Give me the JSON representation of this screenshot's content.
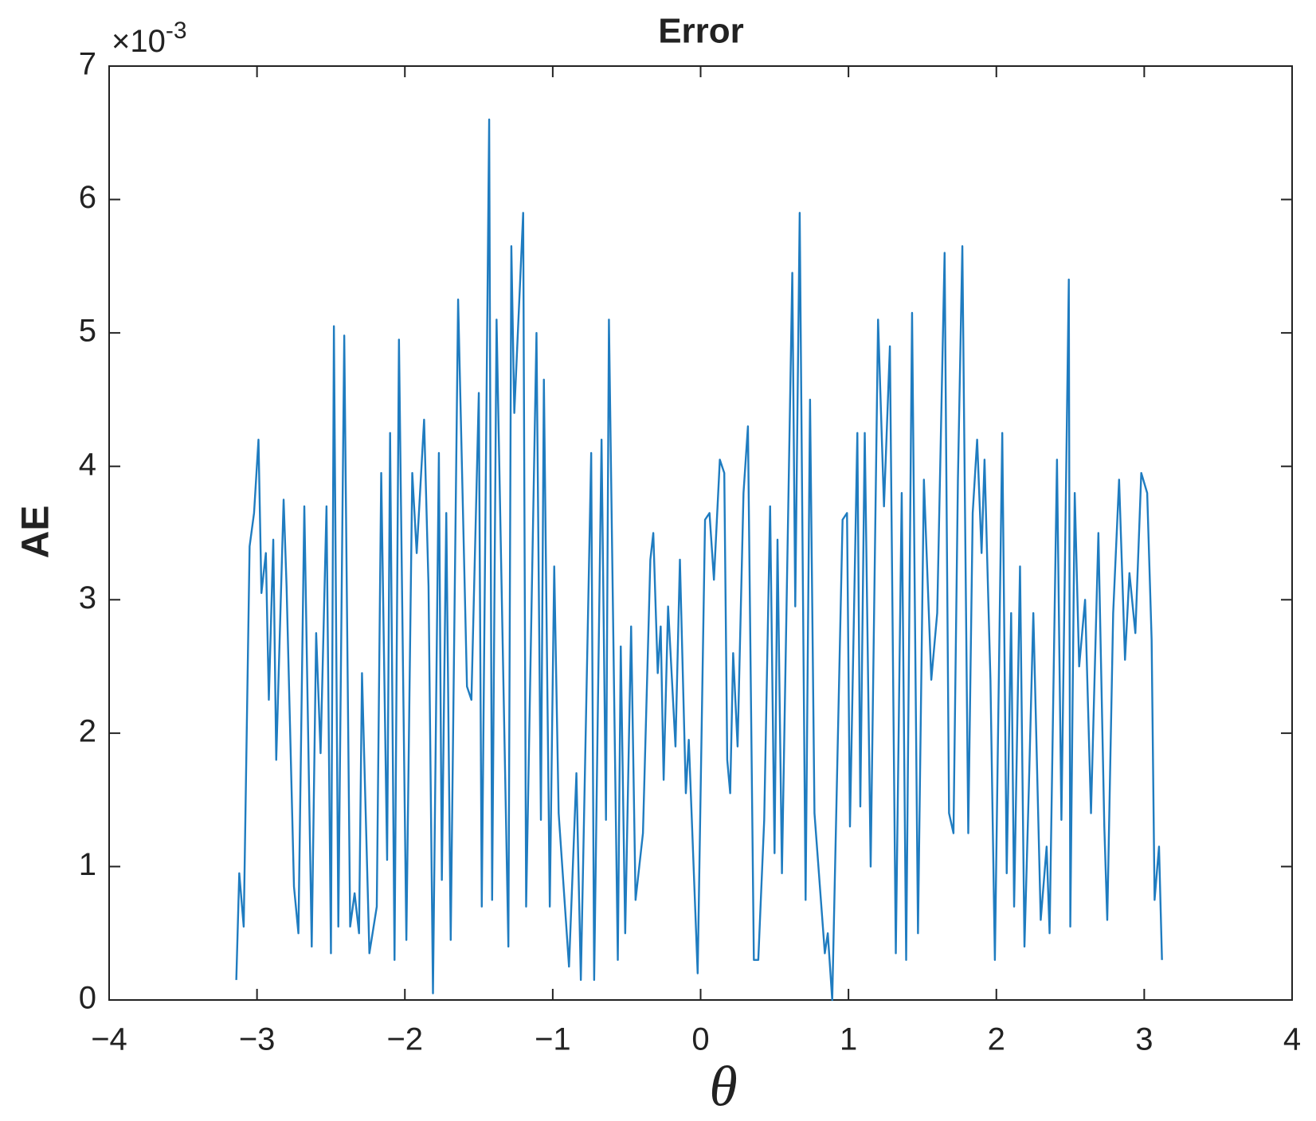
{
  "chart_data": {
    "type": "line",
    "title": "Error",
    "x_label": "θ",
    "y_label": "AE",
    "y_multiplier": {
      "base": "×10",
      "exponent": "-3"
    },
    "color": "#1f7cc0",
    "grid": false,
    "box": true,
    "xlim": [
      -4,
      4
    ],
    "ylim": [
      0,
      7
    ],
    "xticks": [
      {
        "value": -4,
        "label": "−4"
      },
      {
        "value": -3,
        "label": "−3"
      },
      {
        "value": -2,
        "label": "−2"
      },
      {
        "value": -1,
        "label": "−1"
      },
      0,
      1,
      2,
      3,
      4
    ],
    "yticks": [
      0,
      1,
      2,
      3,
      4,
      5,
      6,
      7
    ],
    "x": [
      -3.14,
      -3.12,
      -3.09,
      -3.05,
      -3.02,
      -2.99,
      -2.97,
      -2.94,
      -2.92,
      -2.89,
      -2.87,
      -2.82,
      -2.8,
      -2.75,
      -2.72,
      -2.68,
      -2.63,
      -2.6,
      -2.57,
      -2.53,
      -2.5,
      -2.48,
      -2.45,
      -2.41,
      -2.37,
      -2.34,
      -2.31,
      -2.29,
      -2.24,
      -2.19,
      -2.16,
      -2.12,
      -2.1,
      -2.07,
      -2.04,
      -1.99,
      -1.95,
      -1.92,
      -1.87,
      -1.84,
      -1.81,
      -1.77,
      -1.75,
      -1.72,
      -1.69,
      -1.64,
      -1.58,
      -1.55,
      -1.5,
      -1.48,
      -1.43,
      -1.41,
      -1.38,
      -1.3,
      -1.28,
      -1.26,
      -1.2,
      -1.18,
      -1.11,
      -1.08,
      -1.06,
      -1.02,
      -0.99,
      -0.96,
      -0.89,
      -0.84,
      -0.81,
      -0.74,
      -0.72,
      -0.67,
      -0.64,
      -0.62,
      -0.56,
      -0.54,
      -0.51,
      -0.47,
      -0.44,
      -0.39,
      -0.34,
      -0.32,
      -0.29,
      -0.27,
      -0.25,
      -0.22,
      -0.17,
      -0.14,
      -0.1,
      -0.08,
      -0.02,
      0.03,
      0.06,
      0.09,
      0.13,
      0.16,
      0.18,
      0.2,
      0.22,
      0.25,
      0.29,
      0.32,
      0.36,
      0.39,
      0.43,
      0.47,
      0.5,
      0.52,
      0.55,
      0.62,
      0.64,
      0.67,
      0.71,
      0.74,
      0.77,
      0.84,
      0.86,
      0.89,
      0.96,
      0.99,
      1.01,
      1.06,
      1.08,
      1.11,
      1.15,
      1.2,
      1.24,
      1.28,
      1.32,
      1.36,
      1.39,
      1.43,
      1.47,
      1.51,
      1.56,
      1.6,
      1.65,
      1.68,
      1.71,
      1.74,
      1.77,
      1.81,
      1.84,
      1.87,
      1.9,
      1.92,
      1.96,
      1.99,
      2.04,
      2.07,
      2.1,
      2.12,
      2.16,
      2.19,
      2.22,
      2.25,
      2.3,
      2.34,
      2.36,
      2.41,
      2.44,
      2.49,
      2.5,
      2.53,
      2.56,
      2.6,
      2.64,
      2.69,
      2.73,
      2.75,
      2.79,
      2.83,
      2.87,
      2.9,
      2.94,
      2.98,
      3.02,
      3.05,
      3.07,
      3.1,
      3.12
    ],
    "values": [
      0.15,
      0.95,
      0.55,
      3.4,
      3.65,
      4.2,
      3.05,
      3.35,
      2.25,
      3.45,
      1.8,
      3.75,
      3.1,
      0.85,
      0.5,
      3.7,
      0.4,
      2.75,
      1.85,
      3.7,
      0.35,
      5.05,
      0.55,
      4.98,
      0.55,
      0.8,
      0.5,
      2.45,
      0.35,
      0.7,
      3.95,
      1.05,
      4.25,
      0.3,
      4.95,
      0.45,
      3.95,
      3.35,
      4.35,
      3.1,
      0.05,
      4.1,
      0.9,
      3.65,
      0.45,
      5.25,
      2.35,
      2.25,
      4.55,
      0.7,
      6.6,
      0.75,
      5.1,
      0.4,
      5.65,
      4.4,
      5.9,
      0.7,
      5.0,
      1.35,
      4.65,
      0.7,
      3.25,
      1.4,
      0.25,
      1.7,
      0.15,
      4.1,
      0.15,
      4.2,
      1.35,
      5.1,
      0.3,
      2.65,
      0.5,
      2.8,
      0.75,
      1.25,
      3.3,
      3.5,
      2.45,
      2.8,
      1.65,
      2.95,
      1.9,
      3.3,
      1.55,
      1.95,
      0.2,
      3.6,
      3.65,
      3.15,
      4.05,
      3.95,
      1.8,
      1.55,
      2.6,
      1.9,
      3.8,
      4.3,
      0.3,
      0.3,
      1.35,
      3.7,
      1.1,
      3.45,
      0.95,
      5.45,
      2.95,
      5.9,
      0.75,
      4.5,
      1.4,
      0.35,
      0.5,
      0.0,
      3.6,
      3.65,
      1.3,
      4.25,
      1.45,
      4.25,
      1.0,
      5.1,
      3.7,
      4.9,
      0.35,
      3.8,
      0.3,
      5.15,
      0.5,
      3.9,
      2.4,
      2.9,
      5.6,
      1.4,
      1.25,
      3.9,
      5.65,
      1.25,
      3.65,
      4.2,
      3.35,
      4.05,
      2.4,
      0.3,
      4.25,
      0.95,
      2.9,
      0.7,
      3.25,
      0.4,
      1.6,
      2.9,
      0.6,
      1.15,
      0.5,
      4.05,
      1.35,
      5.4,
      0.55,
      3.8,
      2.5,
      3.0,
      1.4,
      3.5,
      1.3,
      0.6,
      2.9,
      3.9,
      2.55,
      3.2,
      2.75,
      3.95,
      3.8,
      2.7,
      0.75,
      1.15,
      0.3
    ]
  }
}
